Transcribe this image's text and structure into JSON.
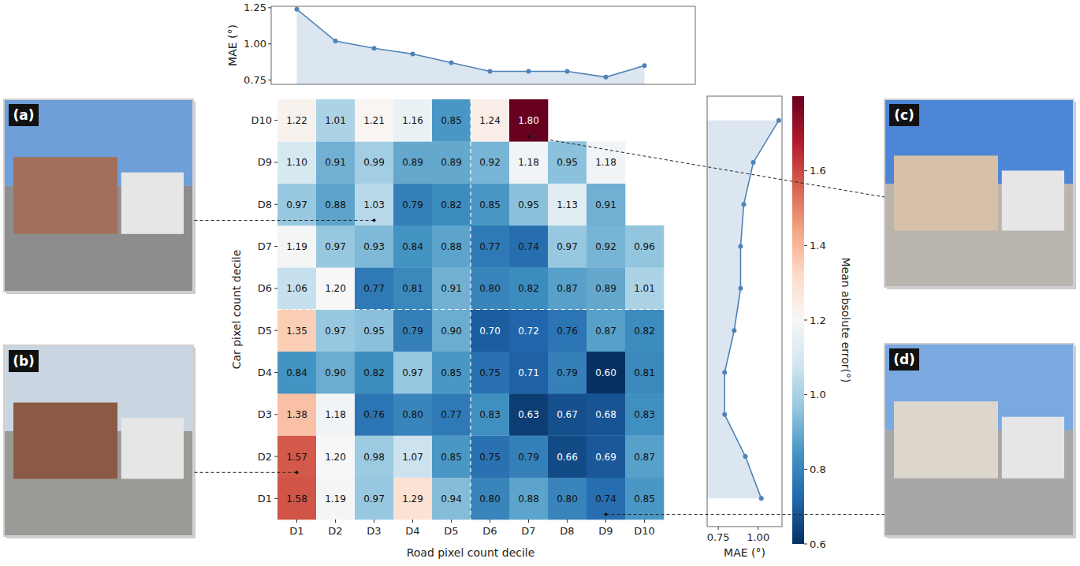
{
  "chart_data": [
    {
      "type": "heatmap",
      "x_label": "Road pixel count decile",
      "y_label": "Car pixel count decile",
      "categories": [
        "D1",
        "D2",
        "D3",
        "D4",
        "D5",
        "D6",
        "D7",
        "D8",
        "D9",
        "D10"
      ],
      "y_categories": [
        "D1",
        "D2",
        "D3",
        "D4",
        "D5",
        "D6",
        "D7",
        "D8",
        "D9",
        "D10"
      ],
      "values": [
        [
          1.58,
          1.19,
          0.97,
          1.29,
          0.94,
          0.8,
          0.88,
          0.8,
          0.74,
          0.85
        ],
        [
          1.57,
          1.2,
          0.98,
          1.07,
          0.85,
          0.75,
          0.79,
          0.66,
          0.69,
          0.87
        ],
        [
          1.38,
          1.18,
          0.76,
          0.8,
          0.77,
          0.83,
          0.63,
          0.67,
          0.68,
          0.83
        ],
        [
          0.84,
          0.9,
          0.82,
          0.97,
          0.85,
          0.75,
          0.71,
          0.79,
          0.6,
          0.81
        ],
        [
          1.35,
          0.97,
          0.95,
          0.79,
          0.9,
          0.7,
          0.72,
          0.76,
          0.87,
          0.82
        ],
        [
          1.06,
          1.2,
          0.77,
          0.81,
          0.91,
          0.8,
          0.82,
          0.87,
          0.89,
          1.01
        ],
        [
          1.19,
          0.97,
          0.93,
          0.84,
          0.88,
          0.77,
          0.74,
          0.97,
          0.92,
          0.96
        ],
        [
          0.97,
          0.88,
          1.03,
          0.79,
          0.82,
          0.85,
          0.95,
          1.13,
          0.91,
          null
        ],
        [
          1.1,
          0.91,
          0.99,
          0.89,
          0.89,
          0.92,
          1.18,
          0.95,
          1.18,
          null
        ],
        [
          1.22,
          1.01,
          1.21,
          1.16,
          0.85,
          1.24,
          1.8,
          null,
          null,
          null
        ]
      ],
      "value_labels": [
        [
          "1.58",
          "1.19",
          "0.97",
          "1.29",
          "0.94",
          "0.80",
          "0.88",
          "0.80",
          "0.74",
          "0.85"
        ],
        [
          "1.57",
          "1.20",
          "0.98",
          "1.07",
          "0.85",
          "0.75",
          "0.79",
          "0.66",
          "0.69",
          "0.87"
        ],
        [
          "1.38",
          "1.18",
          "0.76",
          "0.80",
          "0.77",
          "0.83",
          "0.63",
          "0.67",
          "0.68",
          "0.83"
        ],
        [
          "0.84",
          "0.90",
          "0.82",
          "0.97",
          "0.85",
          "0.75",
          "0.71",
          "0.79",
          "0.60",
          "0.81"
        ],
        [
          "1.35",
          "0.97",
          "0.95",
          "0.79",
          "0.90",
          "0.70",
          "0.72",
          "0.76",
          "0.87",
          "0.82"
        ],
        [
          "1.06",
          "1.20",
          "0.77",
          "0.81",
          "0.91",
          "0.80",
          "0.82",
          "0.87",
          "0.89",
          "1.01"
        ],
        [
          "1.19",
          "0.97",
          "0.93",
          "0.84",
          "0.88",
          "0.77",
          "0.74",
          "0.97",
          "0.92",
          "0.96"
        ],
        [
          "0.97",
          "0.88",
          "1.03",
          "0.79",
          "0.82",
          "0.85",
          "0.95",
          "1.13",
          "0.91",
          null
        ],
        [
          "1.10",
          "0.91",
          "0.99",
          "0.89",
          "0.89",
          "0.92",
          "1.18",
          "0.95",
          "1.18",
          null
        ],
        [
          "1.22",
          "1.01",
          "1.21",
          "1.16",
          "0.85",
          "1.24",
          "1.80",
          null,
          null,
          null
        ]
      ],
      "data_labels": true,
      "colorbar": {
        "label": "Mean absolute error(°)",
        "range": [
          0.6,
          1.8
        ],
        "ticks": [
          0.6,
          0.8,
          {
            "value": 1.0,
            "label": "1.0"
          },
          1.2,
          1.4,
          1.6
        ]
      }
    },
    {
      "type": "line",
      "y_label": "MAE (°)",
      "categories": [
        "D1",
        "D2",
        "D3",
        "D4",
        "D5",
        "D6",
        "D7",
        "D8",
        "D9",
        "D10"
      ],
      "values": [
        1.24,
        1.02,
        0.97,
        0.93,
        0.87,
        0.81,
        0.81,
        0.81,
        0.77,
        0.85
      ],
      "ylim": [
        0.72,
        1.26
      ],
      "yticks": [
        0.75,
        {
          "value": 1.0,
          "label": "1.00"
        },
        1.25
      ],
      "tick_labels": "y",
      "color": "#4f82b8",
      "marker": "circle"
    },
    {
      "type": "line",
      "orientation": "horizontal",
      "x_label": "MAE (°)",
      "categories": [
        "D1",
        "D2",
        "D3",
        "D4",
        "D5",
        "D6",
        "D7",
        "D8",
        "D9",
        "D10"
      ],
      "values": [
        1.02,
        0.92,
        0.79,
        0.79,
        0.85,
        0.89,
        0.89,
        0.91,
        0.97,
        1.13
      ],
      "xlim": [
        0.68,
        1.15
      ],
      "xticks": [
        0.75,
        {
          "value": 1.0,
          "label": "1.00"
        }
      ],
      "tick_labels": "x",
      "color": "#4f82b8",
      "marker": "circle"
    }
  ],
  "images": [
    {
      "label": "(a)"
    },
    {
      "label": "(b)"
    },
    {
      "label": "(c)"
    },
    {
      "label": "(d)"
    }
  ]
}
